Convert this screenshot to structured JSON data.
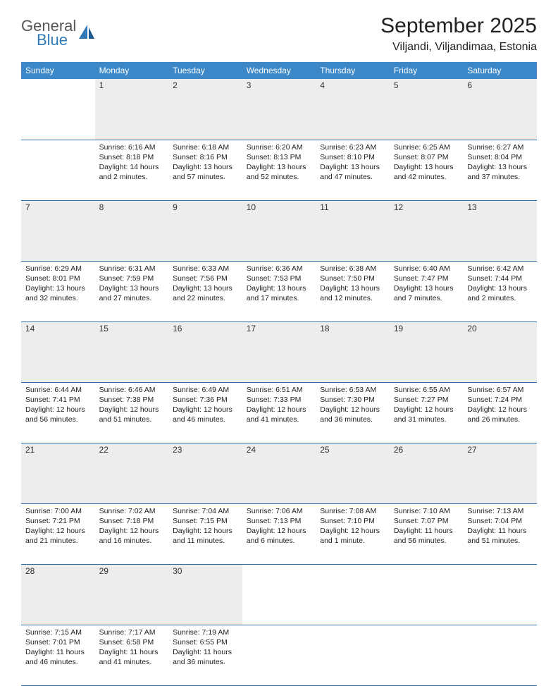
{
  "logo": {
    "text1": "General",
    "text2": "Blue",
    "icon_color": "#2f79b9",
    "text_color": "#555555"
  },
  "header": {
    "month_title": "September 2025",
    "location": "Viljandi, Viljandimaa, Estonia"
  },
  "style": {
    "header_bg": "#3b87c8",
    "header_fg": "#ffffff",
    "daynum_bg": "#ededed",
    "border_color": "#2f6ea5",
    "body_font_size": 10.5,
    "title_font_size": 30,
    "location_font_size": 16,
    "weekday_font_size": 12
  },
  "weekdays": [
    "Sunday",
    "Monday",
    "Tuesday",
    "Wednesday",
    "Thursday",
    "Friday",
    "Saturday"
  ],
  "weeks": [
    [
      null,
      {
        "n": "1",
        "sunrise": "Sunrise: 6:16 AM",
        "sunset": "Sunset: 8:18 PM",
        "daylight": "Daylight: 14 hours and 2 minutes."
      },
      {
        "n": "2",
        "sunrise": "Sunrise: 6:18 AM",
        "sunset": "Sunset: 8:16 PM",
        "daylight": "Daylight: 13 hours and 57 minutes."
      },
      {
        "n": "3",
        "sunrise": "Sunrise: 6:20 AM",
        "sunset": "Sunset: 8:13 PM",
        "daylight": "Daylight: 13 hours and 52 minutes."
      },
      {
        "n": "4",
        "sunrise": "Sunrise: 6:23 AM",
        "sunset": "Sunset: 8:10 PM",
        "daylight": "Daylight: 13 hours and 47 minutes."
      },
      {
        "n": "5",
        "sunrise": "Sunrise: 6:25 AM",
        "sunset": "Sunset: 8:07 PM",
        "daylight": "Daylight: 13 hours and 42 minutes."
      },
      {
        "n": "6",
        "sunrise": "Sunrise: 6:27 AM",
        "sunset": "Sunset: 8:04 PM",
        "daylight": "Daylight: 13 hours and 37 minutes."
      }
    ],
    [
      {
        "n": "7",
        "sunrise": "Sunrise: 6:29 AM",
        "sunset": "Sunset: 8:01 PM",
        "daylight": "Daylight: 13 hours and 32 minutes."
      },
      {
        "n": "8",
        "sunrise": "Sunrise: 6:31 AM",
        "sunset": "Sunset: 7:59 PM",
        "daylight": "Daylight: 13 hours and 27 minutes."
      },
      {
        "n": "9",
        "sunrise": "Sunrise: 6:33 AM",
        "sunset": "Sunset: 7:56 PM",
        "daylight": "Daylight: 13 hours and 22 minutes."
      },
      {
        "n": "10",
        "sunrise": "Sunrise: 6:36 AM",
        "sunset": "Sunset: 7:53 PM",
        "daylight": "Daylight: 13 hours and 17 minutes."
      },
      {
        "n": "11",
        "sunrise": "Sunrise: 6:38 AM",
        "sunset": "Sunset: 7:50 PM",
        "daylight": "Daylight: 13 hours and 12 minutes."
      },
      {
        "n": "12",
        "sunrise": "Sunrise: 6:40 AM",
        "sunset": "Sunset: 7:47 PM",
        "daylight": "Daylight: 13 hours and 7 minutes."
      },
      {
        "n": "13",
        "sunrise": "Sunrise: 6:42 AM",
        "sunset": "Sunset: 7:44 PM",
        "daylight": "Daylight: 13 hours and 2 minutes."
      }
    ],
    [
      {
        "n": "14",
        "sunrise": "Sunrise: 6:44 AM",
        "sunset": "Sunset: 7:41 PM",
        "daylight": "Daylight: 12 hours and 56 minutes."
      },
      {
        "n": "15",
        "sunrise": "Sunrise: 6:46 AM",
        "sunset": "Sunset: 7:38 PM",
        "daylight": "Daylight: 12 hours and 51 minutes."
      },
      {
        "n": "16",
        "sunrise": "Sunrise: 6:49 AM",
        "sunset": "Sunset: 7:36 PM",
        "daylight": "Daylight: 12 hours and 46 minutes."
      },
      {
        "n": "17",
        "sunrise": "Sunrise: 6:51 AM",
        "sunset": "Sunset: 7:33 PM",
        "daylight": "Daylight: 12 hours and 41 minutes."
      },
      {
        "n": "18",
        "sunrise": "Sunrise: 6:53 AM",
        "sunset": "Sunset: 7:30 PM",
        "daylight": "Daylight: 12 hours and 36 minutes."
      },
      {
        "n": "19",
        "sunrise": "Sunrise: 6:55 AM",
        "sunset": "Sunset: 7:27 PM",
        "daylight": "Daylight: 12 hours and 31 minutes."
      },
      {
        "n": "20",
        "sunrise": "Sunrise: 6:57 AM",
        "sunset": "Sunset: 7:24 PM",
        "daylight": "Daylight: 12 hours and 26 minutes."
      }
    ],
    [
      {
        "n": "21",
        "sunrise": "Sunrise: 7:00 AM",
        "sunset": "Sunset: 7:21 PM",
        "daylight": "Daylight: 12 hours and 21 minutes."
      },
      {
        "n": "22",
        "sunrise": "Sunrise: 7:02 AM",
        "sunset": "Sunset: 7:18 PM",
        "daylight": "Daylight: 12 hours and 16 minutes."
      },
      {
        "n": "23",
        "sunrise": "Sunrise: 7:04 AM",
        "sunset": "Sunset: 7:15 PM",
        "daylight": "Daylight: 12 hours and 11 minutes."
      },
      {
        "n": "24",
        "sunrise": "Sunrise: 7:06 AM",
        "sunset": "Sunset: 7:13 PM",
        "daylight": "Daylight: 12 hours and 6 minutes."
      },
      {
        "n": "25",
        "sunrise": "Sunrise: 7:08 AM",
        "sunset": "Sunset: 7:10 PM",
        "daylight": "Daylight: 12 hours and 1 minute."
      },
      {
        "n": "26",
        "sunrise": "Sunrise: 7:10 AM",
        "sunset": "Sunset: 7:07 PM",
        "daylight": "Daylight: 11 hours and 56 minutes."
      },
      {
        "n": "27",
        "sunrise": "Sunrise: 7:13 AM",
        "sunset": "Sunset: 7:04 PM",
        "daylight": "Daylight: 11 hours and 51 minutes."
      }
    ],
    [
      {
        "n": "28",
        "sunrise": "Sunrise: 7:15 AM",
        "sunset": "Sunset: 7:01 PM",
        "daylight": "Daylight: 11 hours and 46 minutes."
      },
      {
        "n": "29",
        "sunrise": "Sunrise: 7:17 AM",
        "sunset": "Sunset: 6:58 PM",
        "daylight": "Daylight: 11 hours and 41 minutes."
      },
      {
        "n": "30",
        "sunrise": "Sunrise: 7:19 AM",
        "sunset": "Sunset: 6:55 PM",
        "daylight": "Daylight: 11 hours and 36 minutes."
      },
      null,
      null,
      null,
      null
    ]
  ]
}
